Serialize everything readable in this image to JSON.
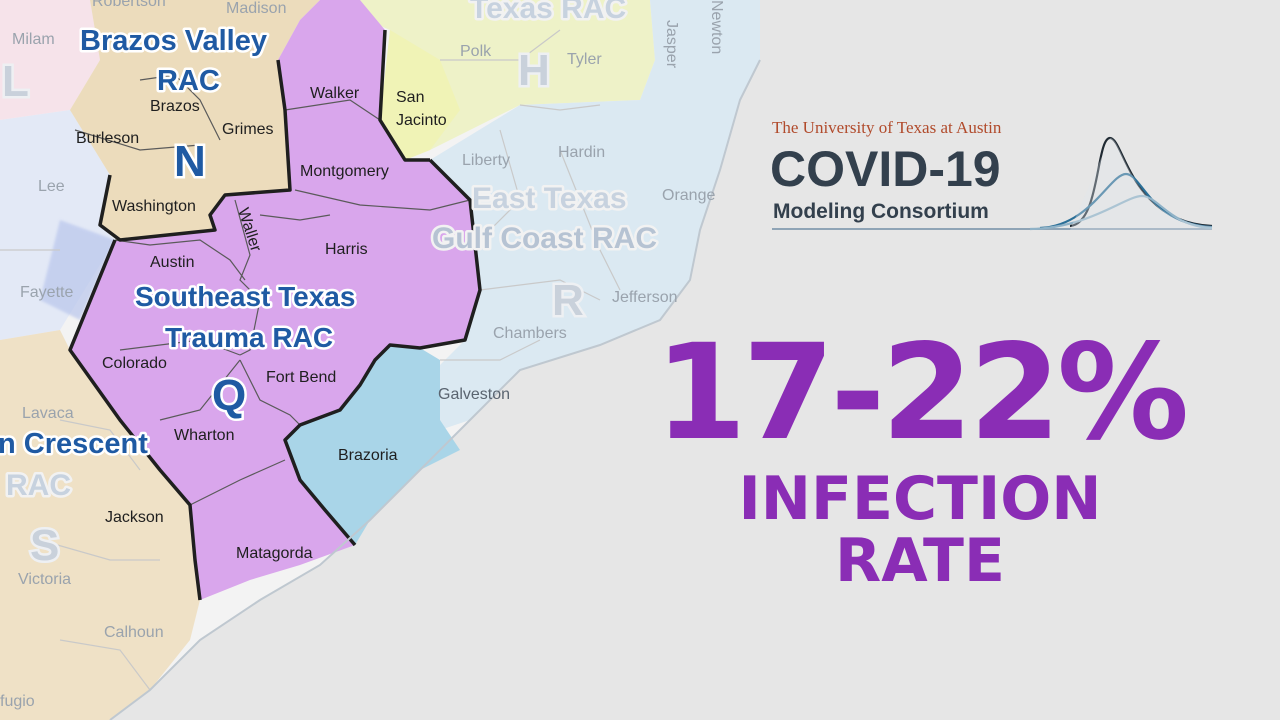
{
  "map": {
    "regions": {
      "n_name_1": "Brazos Valley",
      "n_name_2": "RAC",
      "n_letter": "N",
      "q_name_1": "Southeast Texas",
      "q_name_2": "Trauma RAC",
      "q_letter": "Q",
      "r_name_1": "East Texas",
      "r_name_2": "Gulf Coast RAC",
      "r_letter": "R",
      "h_name": "Texas RAC",
      "h_letter": "H",
      "s_name_1": "n Crescent",
      "s_name_2": "RAC",
      "s_letter": "S",
      "l_letter": "L"
    },
    "counties": {
      "robertson": "Robertson",
      "madison": "Madison",
      "milam": "Milam",
      "brazos": "Brazos",
      "grimes": "Grimes",
      "burleson": "Burleson",
      "lee": "Lee",
      "washington": "Washington",
      "walker": "Walker",
      "san_jacinto_1": "San",
      "san_jacinto_2": "Jacinto",
      "polk": "Polk",
      "tyler": "Tyler",
      "jasper": "Jasper",
      "newton": "Newton",
      "montgomery": "Montgomery",
      "liberty": "Liberty",
      "hardin": "Hardin",
      "orange": "Orange",
      "waller": "Waller",
      "harris": "Harris",
      "austin": "Austin",
      "fayette": "Fayette",
      "jefferson": "Jefferson",
      "chambers": "Chambers",
      "colorado": "Colorado",
      "fort_bend": "Fort Bend",
      "galveston": "Galveston",
      "lavaca": "Lavaca",
      "wharton": "Wharton",
      "brazoria": "Brazoria",
      "jackson": "Jackson",
      "matagorda": "Matagorda",
      "victoria": "Victoria",
      "calhoun": "Calhoun",
      "refugio": "fugio"
    }
  },
  "logo": {
    "university": "The University of Texas at Austin",
    "title": "COVID-19",
    "subtitle": "Modeling Consortium"
  },
  "stat": {
    "value": "17-22%",
    "line1": "INFECTION",
    "line2": "RATE"
  },
  "colors": {
    "background": "#e6e6e6",
    "region_q": "#d9a6ec",
    "region_n": "#ecdcbc",
    "region_r": "#d3e6f1",
    "region_h": "#eef2c8",
    "brazoria": "#a9d5e8",
    "accent": "#8a2db5",
    "logo_text": "#33404d",
    "logo_university": "#b14b2c"
  }
}
